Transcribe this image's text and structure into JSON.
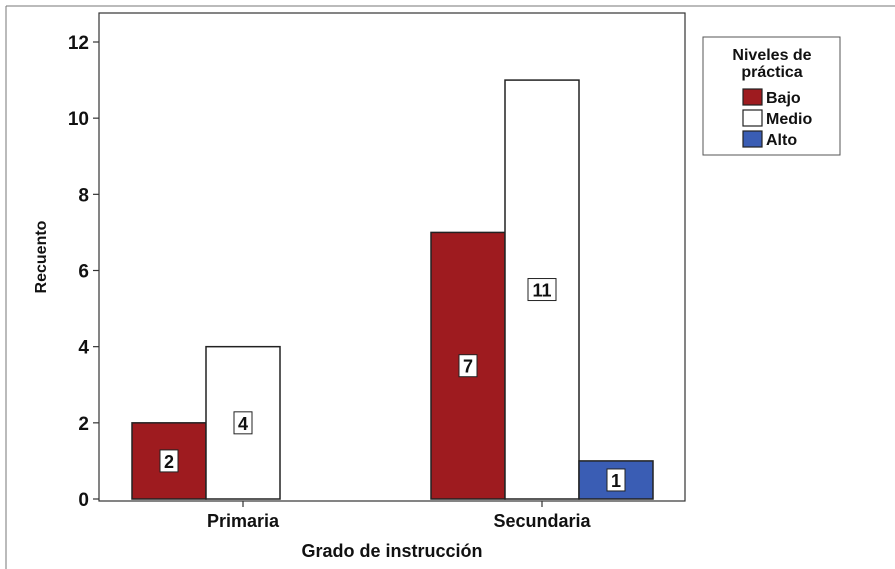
{
  "chart_data": {
    "type": "bar",
    "categories": [
      "Primaria",
      "Secundaria"
    ],
    "series": [
      {
        "name": "Bajo",
        "color": "#9e1b1f",
        "values": [
          2,
          7
        ]
      },
      {
        "name": "Medio",
        "color": "#ffffff",
        "values": [
          4,
          11
        ]
      },
      {
        "name": "Alto",
        "color": "#3a5db4",
        "values": [
          null,
          1
        ]
      }
    ],
    "xlabel": "Grado de instrucción",
    "ylabel": "Recuento",
    "ylim": [
      0,
      12
    ],
    "yticks": [
      0,
      2,
      4,
      6,
      8,
      10,
      12
    ],
    "legend": {
      "title_line1": "Niveles de",
      "title_line2": "práctica",
      "placement": "top-right, outside plot"
    },
    "grid": false
  }
}
